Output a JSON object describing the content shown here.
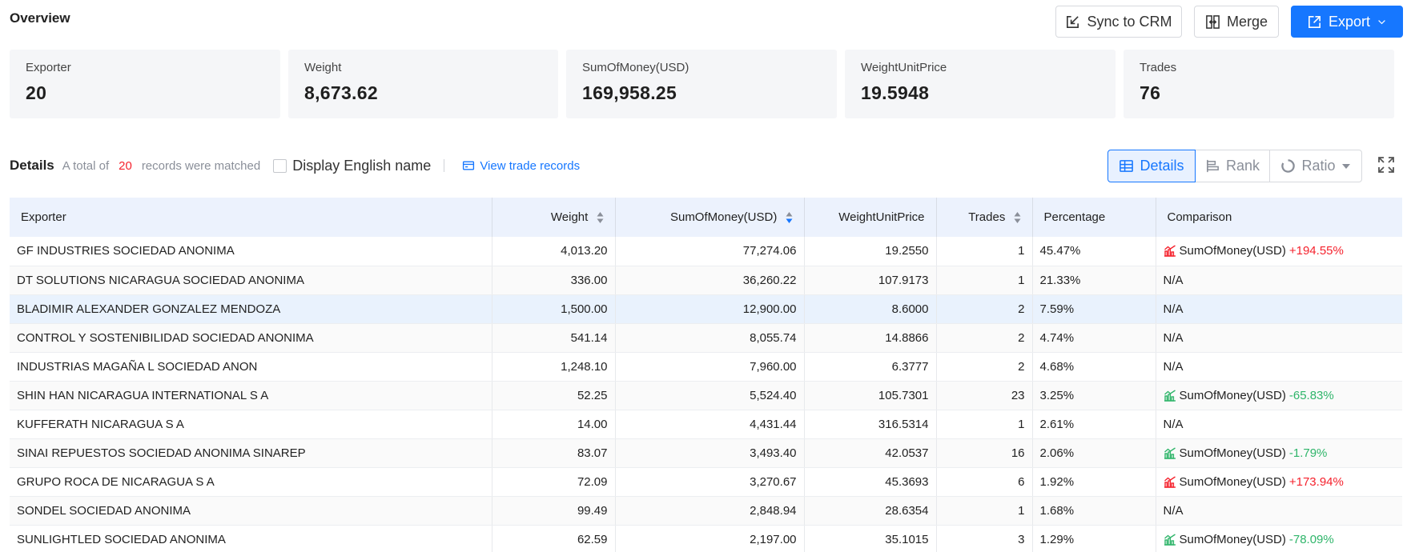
{
  "header": {
    "title": "Overview",
    "sync_label": "Sync to CRM",
    "merge_label": "Merge",
    "export_label": "Export"
  },
  "stats": [
    {
      "label": "Exporter",
      "value": "20"
    },
    {
      "label": "Weight",
      "value": "8,673.62"
    },
    {
      "label": "SumOfMoney(USD)",
      "value": "169,958.25"
    },
    {
      "label": "WeightUnitPrice",
      "value": "19.5948"
    },
    {
      "label": "Trades",
      "value": "76"
    }
  ],
  "details": {
    "title": "Details",
    "total_prefix": "A total of",
    "count": "20",
    "total_suffix": "records were matched",
    "english_label": "Display English name",
    "view_records": "View trade records",
    "view_details": "Details",
    "view_rank": "Rank",
    "view_ratio": "Ratio"
  },
  "table": {
    "headers": [
      "Exporter",
      "Weight",
      "SumOfMoney(USD)",
      "WeightUnitPrice",
      "Trades",
      "Percentage",
      "Comparison"
    ],
    "rows": [
      {
        "exporter": "GF INDUSTRIES SOCIEDAD ANONIMA",
        "weight": "4,013.20",
        "money": "77,274.06",
        "unit": "19.2550",
        "trades": "1",
        "pct": "45.47%",
        "cmp_label": "SumOfMoney(USD)",
        "cmp_value": "+194.55%",
        "cmp_dir": "up"
      },
      {
        "exporter": "DT SOLUTIONS NICARAGUA SOCIEDAD ANONIMA",
        "weight": "336.00",
        "money": "36,260.22",
        "unit": "107.9173",
        "trades": "1",
        "pct": "21.33%",
        "cmp_label": "N/A",
        "cmp_value": "",
        "cmp_dir": "none"
      },
      {
        "exporter": "BLADIMIR ALEXANDER GONZALEZ MENDOZA",
        "weight": "1,500.00",
        "money": "12,900.00",
        "unit": "8.6000",
        "trades": "2",
        "pct": "7.59%",
        "cmp_label": "N/A",
        "cmp_value": "",
        "cmp_dir": "none"
      },
      {
        "exporter": "CONTROL Y SOSTENIBILIDAD SOCIEDAD ANONIMA",
        "weight": "541.14",
        "money": "8,055.74",
        "unit": "14.8866",
        "trades": "2",
        "pct": "4.74%",
        "cmp_label": "N/A",
        "cmp_value": "",
        "cmp_dir": "none"
      },
      {
        "exporter": "INDUSTRIAS MAGAÑA L SOCIEDAD ANON",
        "weight": "1,248.10",
        "money": "7,960.00",
        "unit": "6.3777",
        "trades": "2",
        "pct": "4.68%",
        "cmp_label": "N/A",
        "cmp_value": "",
        "cmp_dir": "none"
      },
      {
        "exporter": "SHIN HAN NICARAGUA INTERNATIONAL S A",
        "weight": "52.25",
        "money": "5,524.40",
        "unit": "105.7301",
        "trades": "23",
        "pct": "3.25%",
        "cmp_label": "SumOfMoney(USD)",
        "cmp_value": "-65.83%",
        "cmp_dir": "down"
      },
      {
        "exporter": "KUFFERATH NICARAGUA S A",
        "weight": "14.00",
        "money": "4,431.44",
        "unit": "316.5314",
        "trades": "1",
        "pct": "2.61%",
        "cmp_label": "N/A",
        "cmp_value": "",
        "cmp_dir": "none"
      },
      {
        "exporter": "SINAI REPUESTOS SOCIEDAD ANONIMA SINAREP",
        "weight": "83.07",
        "money": "3,493.40",
        "unit": "42.0537",
        "trades": "16",
        "pct": "2.06%",
        "cmp_label": "SumOfMoney(USD)",
        "cmp_value": "-1.79%",
        "cmp_dir": "down"
      },
      {
        "exporter": "GRUPO ROCA DE NICARAGUA S A",
        "weight": "72.09",
        "money": "3,270.67",
        "unit": "45.3693",
        "trades": "6",
        "pct": "1.92%",
        "cmp_label": "SumOfMoney(USD)",
        "cmp_value": "+173.94%",
        "cmp_dir": "up"
      },
      {
        "exporter": "SONDEL SOCIEDAD ANONIMA",
        "weight": "99.49",
        "money": "2,848.94",
        "unit": "28.6354",
        "trades": "1",
        "pct": "1.68%",
        "cmp_label": "N/A",
        "cmp_value": "",
        "cmp_dir": "none"
      },
      {
        "exporter": "SUNLIGHTLED SOCIEDAD ANONIMA",
        "weight": "62.59",
        "money": "2,197.00",
        "unit": "35.1015",
        "trades": "3",
        "pct": "1.29%",
        "cmp_label": "SumOfMoney(USD)",
        "cmp_value": "-78.09%",
        "cmp_dir": "down"
      }
    ]
  },
  "colors": {
    "accent": "#1677ff",
    "positive": "#f5222d",
    "negative": "#2fb56a"
  }
}
